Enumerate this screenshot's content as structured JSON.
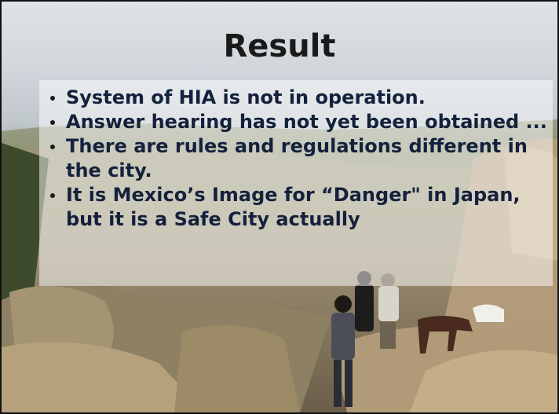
{
  "title": "Result",
  "bullets": [
    "System of HIA is not in operation.",
    "Answer hearing has not yet been obtained ...",
    "There are rules and regulations different in the city.",
    "It is Mexico’s Image for “Danger\" in Japan, but it is a Safe City actually"
  ]
}
